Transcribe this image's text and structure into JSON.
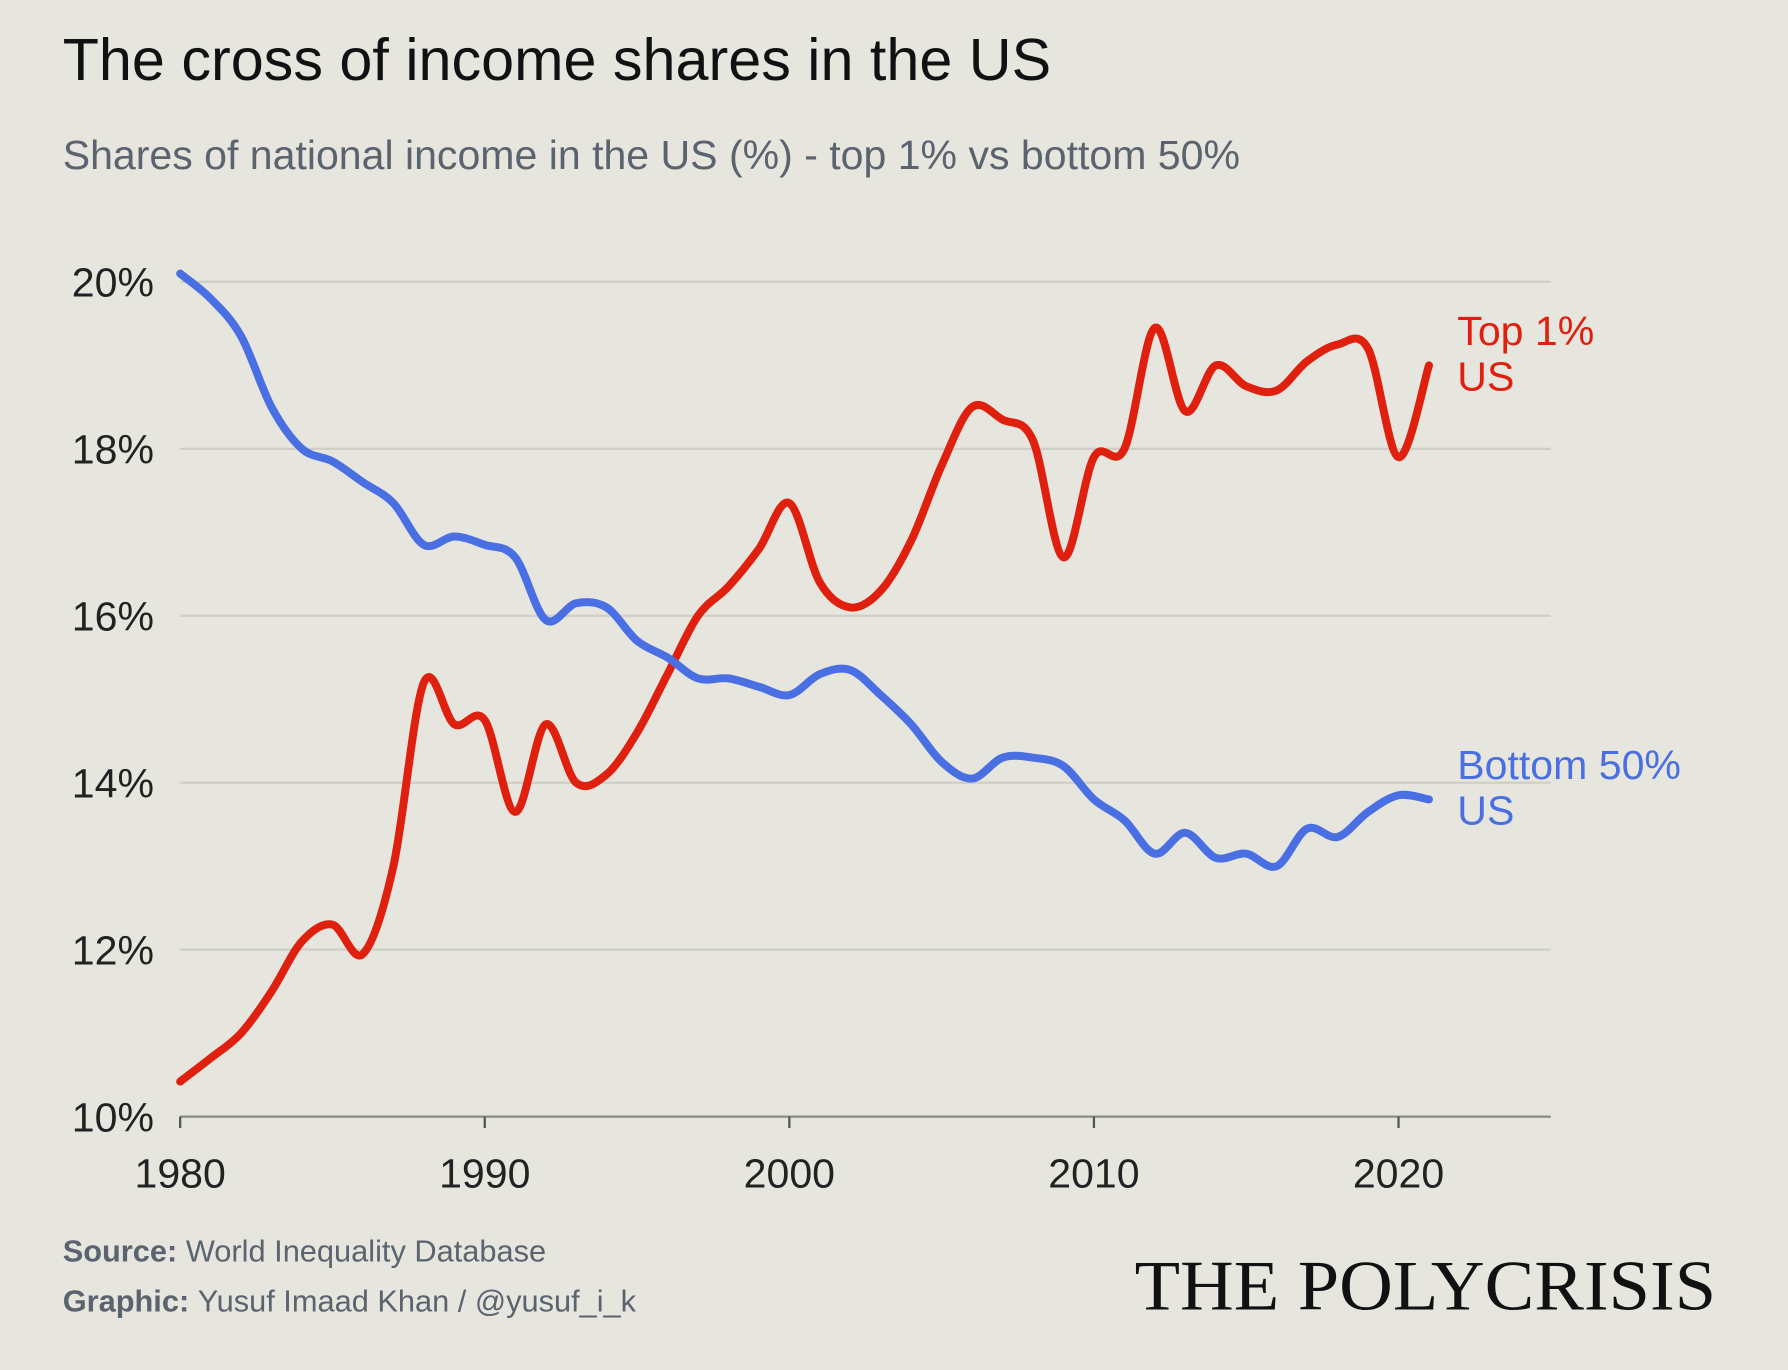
{
  "chart_data": {
    "type": "line",
    "title": "The cross of income shares in the US",
    "subtitle": "Shares of national income in the US (%) - top 1% vs bottom 50%",
    "x": [
      1980,
      1981,
      1982,
      1983,
      1984,
      1985,
      1986,
      1987,
      1988,
      1989,
      1990,
      1991,
      1992,
      1993,
      1994,
      1995,
      1996,
      1997,
      1998,
      1999,
      2000,
      2001,
      2002,
      2003,
      2004,
      2005,
      2006,
      2007,
      2008,
      2009,
      2010,
      2011,
      2012,
      2013,
      2014,
      2015,
      2016,
      2017,
      2018,
      2019,
      2020,
      2021
    ],
    "series": [
      {
        "name": "Top 1%",
        "region": "US",
        "color": "#e0200f",
        "values": [
          10.42,
          10.7,
          11.0,
          11.5,
          12.1,
          12.3,
          11.95,
          13.0,
          15.2,
          14.7,
          14.75,
          13.65,
          14.7,
          14.0,
          14.1,
          14.6,
          15.3,
          16.0,
          16.35,
          16.8,
          17.35,
          16.4,
          16.1,
          16.3,
          16.9,
          17.8,
          18.5,
          18.35,
          18.1,
          16.7,
          17.9,
          18.0,
          19.45,
          18.45,
          19.0,
          18.75,
          18.7,
          19.05,
          19.25,
          19.2,
          17.9,
          19.0
        ]
      },
      {
        "name": "Bottom 50%",
        "region": "US",
        "color": "#4a6fe3",
        "values": [
          20.1,
          19.8,
          19.35,
          18.5,
          18.0,
          17.85,
          17.6,
          17.35,
          16.85,
          16.95,
          16.85,
          16.7,
          15.95,
          16.15,
          16.1,
          15.7,
          15.5,
          15.25,
          15.25,
          15.15,
          15.05,
          15.3,
          15.35,
          15.05,
          14.7,
          14.25,
          14.05,
          14.3,
          14.3,
          14.2,
          13.8,
          13.55,
          13.15,
          13.4,
          13.1,
          13.15,
          13.0,
          13.45,
          13.35,
          13.65,
          13.85,
          13.8
        ]
      }
    ],
    "xlim": [
      1980,
      2025
    ],
    "xticks": [
      1980,
      1990,
      2000,
      2010,
      2020
    ],
    "ylim": [
      10,
      20
    ],
    "yticks": [
      {
        "value": 10,
        "label": "10%"
      },
      {
        "value": 12,
        "label": "12%"
      },
      {
        "value": 14,
        "label": "14%"
      },
      {
        "value": 16,
        "label": "16%"
      },
      {
        "value": 18,
        "label": "18%"
      },
      {
        "value": 20,
        "label": "20%"
      }
    ],
    "grid": true,
    "footer": {
      "source_label": "Source:",
      "source": "World Inequality Database",
      "graphic_label": "Graphic:",
      "graphic": "Yusuf Imaad Khan / @yusuf_i_k",
      "brand": "THE POLYCRISIS"
    }
  }
}
